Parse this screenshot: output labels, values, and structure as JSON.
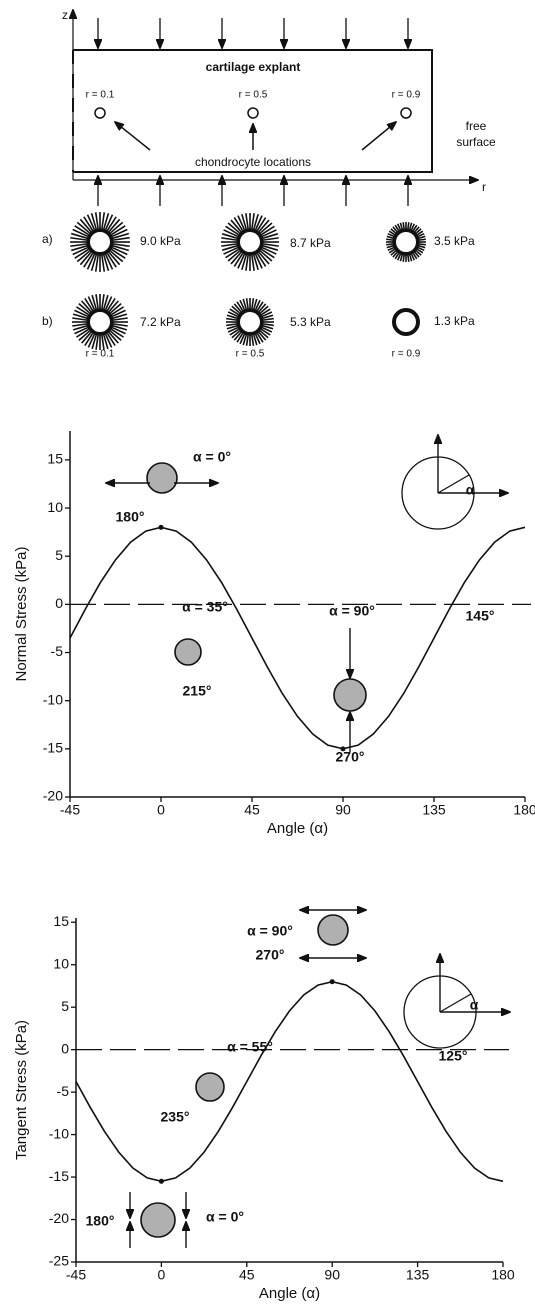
{
  "diagram": {
    "z_axis": "z",
    "r_axis": "r",
    "explant": "cartilage explant",
    "positions": [
      "r = 0.1",
      "r = 0.5",
      "r = 0.9"
    ],
    "free_surface": [
      "free",
      "surface"
    ],
    "locations": "chondrocyte locations",
    "rows": [
      {
        "label": "a)",
        "pressures": [
          "9.0 kPa",
          "8.7 kPa",
          "3.5 kPa"
        ]
      },
      {
        "label": "b)",
        "pressures": [
          "7.2 kPa",
          "5.3 kPa",
          "1.3 kPa"
        ]
      }
    ],
    "row_positions": [
      "r = 0.1",
      "r = 0.5",
      "r = 0.9"
    ]
  },
  "chart_data": [
    {
      "type": "line",
      "x_label": "Angle (α)",
      "y_label": "Normal Stress (kPa)",
      "color": "#000000",
      "x": [
        -45,
        -37.5,
        -30,
        -22.5,
        -15,
        -7.5,
        0,
        7.5,
        15,
        22.5,
        30,
        37.5,
        45,
        52.5,
        60,
        67.5,
        75,
        82.5,
        90,
        97.5,
        105,
        112.5,
        120,
        127.5,
        135,
        142.5,
        150,
        157.5,
        165,
        172.5,
        180
      ],
      "values": [
        -3.5,
        -0.52,
        2.25,
        4.63,
        6.46,
        7.61,
        8,
        7.61,
        6.46,
        4.63,
        2.25,
        -0.52,
        -3.5,
        -6.48,
        -9.25,
        -11.63,
        -13.46,
        -14.61,
        -15,
        -14.61,
        -13.46,
        -11.63,
        -9.25,
        -6.48,
        -3.5,
        -0.52,
        2.25,
        4.63,
        6.46,
        7.61,
        8
      ],
      "xlim": [
        -45,
        180
      ],
      "xticks": [
        -45,
        0,
        45,
        90,
        135,
        180
      ],
      "ylim": [
        -20,
        18
      ],
      "yticks": [
        15,
        10,
        5,
        0,
        -5,
        -10,
        -15,
        -20
      ],
      "annotations": [
        "α = 0°",
        "180°",
        "α = 35°",
        "215°",
        "α = 90°",
        "270°",
        "145°",
        "α"
      ]
    },
    {
      "type": "line",
      "x_label": "Angle (α)",
      "y_label": "Tangent Stress (kPa)",
      "color": "#000000",
      "x": [
        -45,
        -37.5,
        -30,
        -22.5,
        -15,
        -7.5,
        0,
        7.5,
        15,
        22.5,
        30,
        37.5,
        45,
        52.5,
        60,
        67.5,
        75,
        82.5,
        90,
        97.5,
        105,
        112.5,
        120,
        127.5,
        135,
        142.5,
        150,
        157.5,
        165,
        172.5,
        180
      ],
      "values": [
        -3.75,
        -6.79,
        -9.63,
        -12.06,
        -13.93,
        -15.1,
        -15.5,
        -15.1,
        -13.93,
        -12.06,
        -9.63,
        -6.79,
        -3.75,
        -0.71,
        2.13,
        4.56,
        6.43,
        7.6,
        8,
        7.6,
        6.43,
        4.56,
        2.13,
        -0.71,
        -3.75,
        -6.79,
        -9.63,
        -12.06,
        -13.93,
        -15.1,
        -15.5
      ],
      "xlim": [
        -45,
        180
      ],
      "xticks": [
        -45,
        0,
        45,
        90,
        135,
        180
      ],
      "ylim": [
        -25,
        15.5
      ],
      "yticks": [
        15,
        10,
        5,
        0,
        -5,
        -10,
        -15,
        -20,
        -25
      ],
      "annotations": [
        "α = 90°",
        "270°",
        "α = 55°",
        "235°",
        "125°",
        "180°",
        "α = 0°",
        "α"
      ]
    }
  ]
}
